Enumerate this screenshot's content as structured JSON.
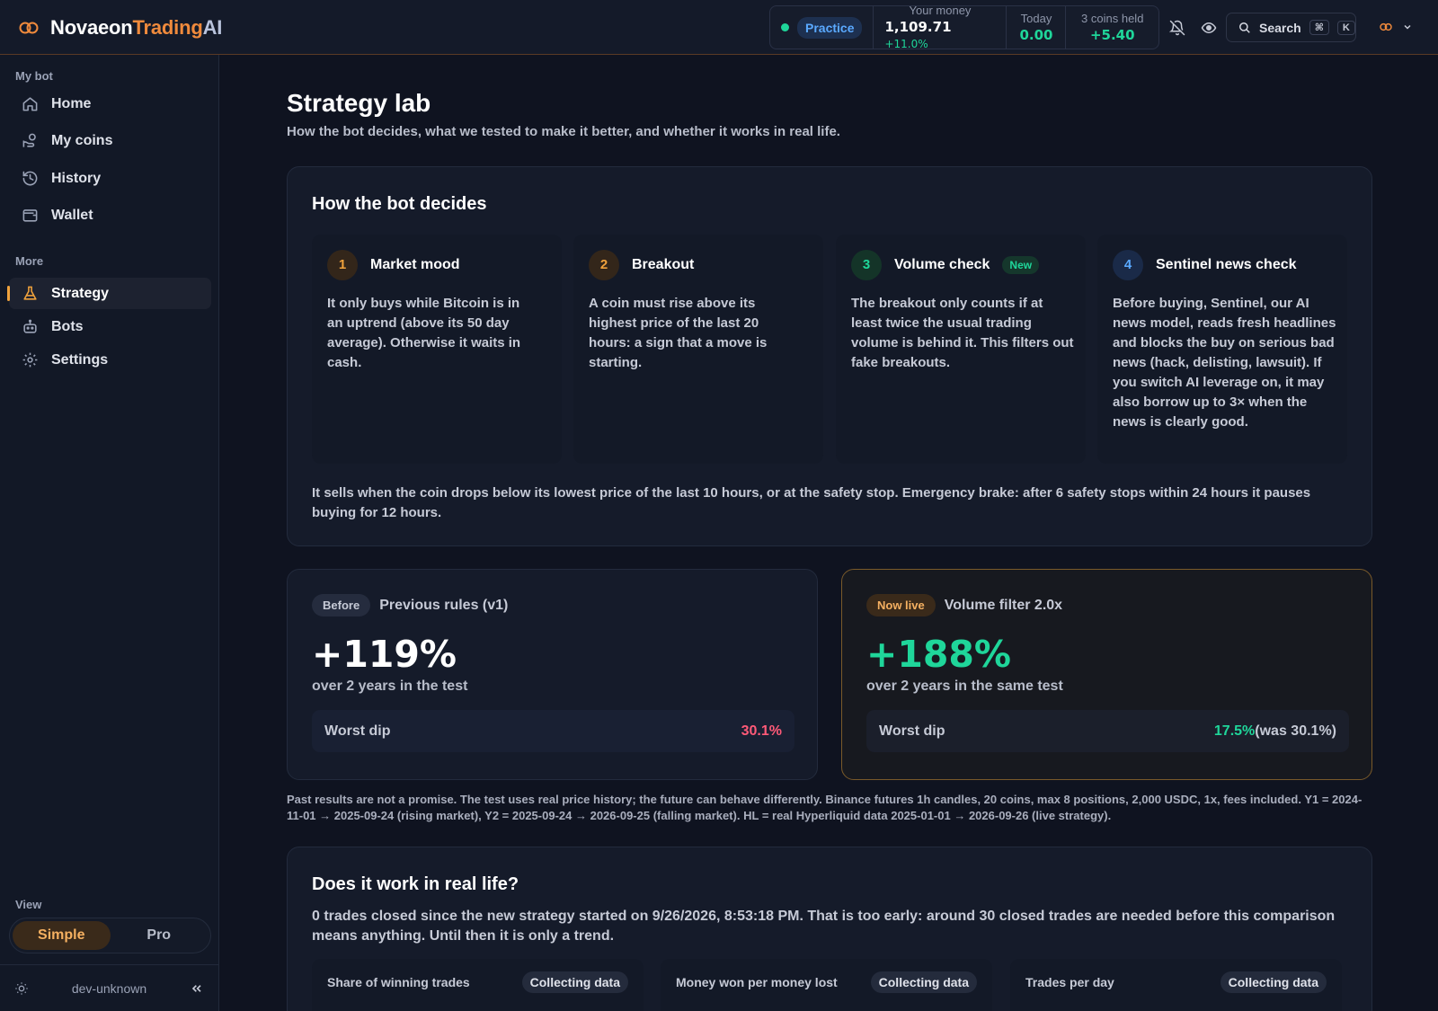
{
  "brand": {
    "part1": "Novaeon",
    "part2": "Trading",
    "part3": "AI"
  },
  "topbar": {
    "mode": "Practice",
    "money_label": "Your money",
    "money_value": "1,109.71",
    "money_change": "+11.0%",
    "today_label": "Today",
    "today_value": "0.00",
    "held_label": "3 coins held",
    "held_value": "+5.40",
    "search_label": "Search",
    "search_kbd1": "⌘",
    "search_kbd2": "K",
    "icons": [
      "bell-off-icon",
      "eye-icon",
      "search-icon",
      "logo-icon",
      "chevron-down-icon"
    ]
  },
  "sidebar": {
    "section1": "My bot",
    "items1": [
      {
        "label": "Home",
        "icon": "home-icon"
      },
      {
        "label": "My coins",
        "icon": "coins-icon"
      },
      {
        "label": "History",
        "icon": "history-icon"
      },
      {
        "label": "Wallet",
        "icon": "wallet-icon"
      }
    ],
    "section2": "More",
    "items2": [
      {
        "label": "Strategy",
        "icon": "flask-icon"
      },
      {
        "label": "Bots",
        "icon": "bot-icon"
      },
      {
        "label": "Settings",
        "icon": "gear-icon"
      }
    ],
    "view_label": "View",
    "view_simple": "Simple",
    "view_pro": "Pro",
    "footer_env": "dev-unknown"
  },
  "page": {
    "title": "Strategy lab",
    "subtitle": "How the bot decides, what we tested to make it better, and whether it works in real life."
  },
  "decides": {
    "title": "How the bot decides",
    "steps": [
      {
        "num": "1",
        "title": "Market mood",
        "body": "It only buys while Bitcoin is in an uptrend (above its 50 day average). Otherwise it waits in cash."
      },
      {
        "num": "2",
        "title": "Breakout",
        "body": "A coin must rise above its highest price of the last 20 hours: a sign that a move is starting."
      },
      {
        "num": "3",
        "title": "Volume check",
        "badge": "New",
        "body": "The breakout only counts if at least twice the usual trading volume is behind it. This filters out fake breakouts."
      },
      {
        "num": "4",
        "title": "Sentinel news check",
        "body": "Before buying, Sentinel, our AI news model, reads fresh headlines and blocks the buy on serious bad news (hack, delisting, lawsuit). If you switch AI leverage on, it may also borrow up to 3× when the news is clearly good."
      }
    ],
    "note": "It sells when the coin drops below its lowest price of the last 10 hours, or at the safety stop. Emergency brake: after 6 safety stops within 24 hours it pauses buying for 12 hours."
  },
  "compare": {
    "before": {
      "tag": "Before",
      "name": "Previous rules (v1)",
      "value": "+119%",
      "caption": "over 2 years in the test",
      "dip_label": "Worst dip",
      "dip_value": "30.1%"
    },
    "live": {
      "tag": "Now live",
      "name": "Volume filter 2.0x",
      "value": "+188%",
      "caption": "over 2 years in the same test",
      "dip_label": "Worst dip",
      "dip_value": "17.5%",
      "dip_was": "(was 30.1%)"
    }
  },
  "disclaimer": "Past results are not a promise. The test uses real price history; the future can behave differently. Binance futures 1h candles, 20 coins, max 8 positions, 2,000 USDC, 1x, fees included. Y1 = 2024-11-01 → 2025-09-24 (rising market), Y2 = 2025-09-24 → 2026-09-25 (falling market). HL = real Hyperliquid data 2025-01-01 → 2026-09-26 (live strategy).",
  "real": {
    "title": "Does it work in real life?",
    "text": "0 trades closed since the new strategy started on 9/26/2026, 8:53:18 PM. That is too early: around 30 closed trades are needed before this comparison means anything. Until then it is only a trend.",
    "metrics": [
      {
        "label": "Share of winning trades",
        "status": "Collecting data"
      },
      {
        "label": "Money won per money lost",
        "status": "Collecting data"
      },
      {
        "label": "Trades per day",
        "status": "Collecting data"
      }
    ]
  },
  "colors": {
    "accent": "#f08a3c",
    "positive": "#1fd69a",
    "negative": "#ff5a78",
    "background": "#0f1320"
  }
}
